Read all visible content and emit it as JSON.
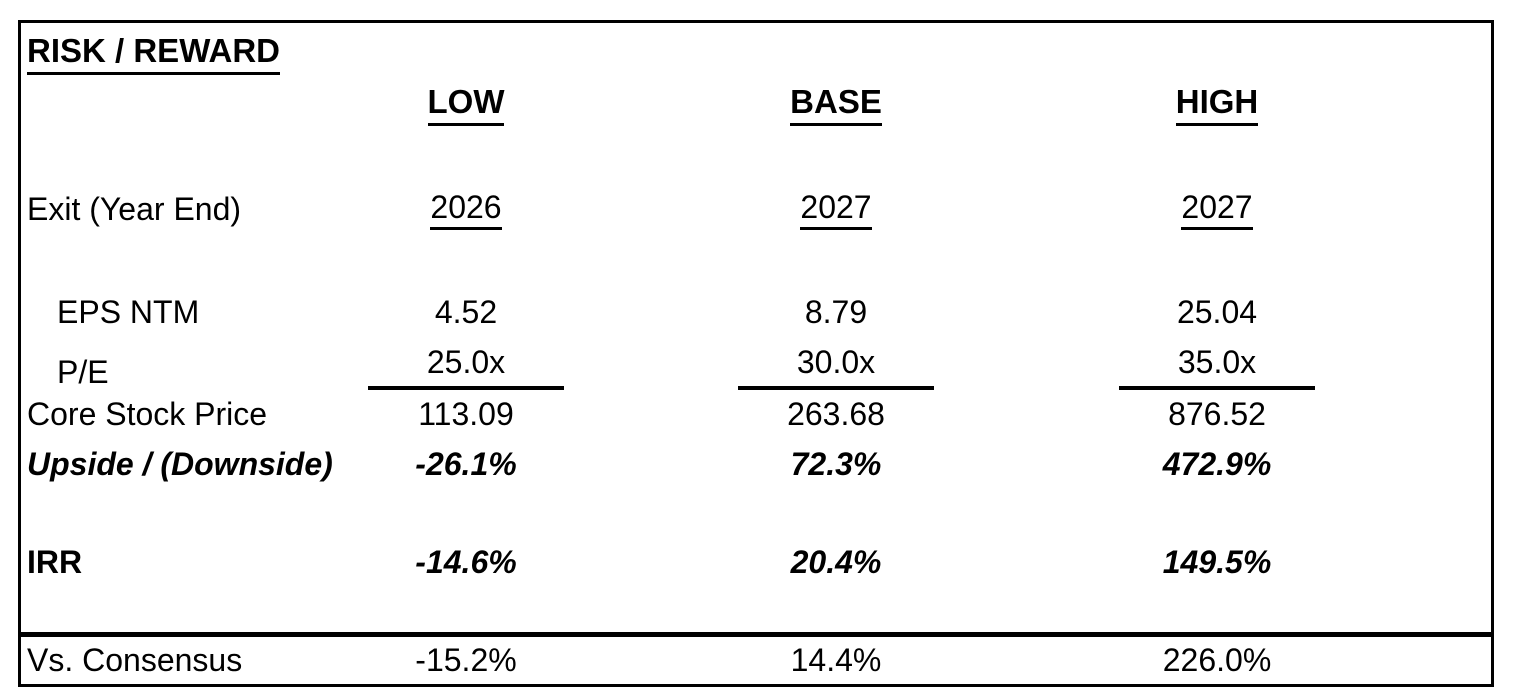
{
  "title": "RISK / REWARD",
  "columns": [
    "LOW",
    "BASE",
    "HIGH"
  ],
  "rows": {
    "exit": {
      "label": "Exit (Year End)",
      "values": [
        "2026",
        "2027",
        "2027"
      ]
    },
    "eps": {
      "label": "EPS NTM",
      "values": [
        "4.52",
        "8.79",
        "25.04"
      ]
    },
    "pe": {
      "label": "P/E",
      "values": [
        "25.0x",
        "30.0x",
        "35.0x"
      ]
    },
    "price": {
      "label": "Core Stock Price",
      "values": [
        "113.09",
        "263.68",
        "876.52"
      ]
    },
    "upside": {
      "label": "Upside / (Downside)",
      "values": [
        "-26.1%",
        "72.3%",
        "472.9%"
      ]
    },
    "irr": {
      "label": "IRR",
      "values": [
        "-14.6%",
        "20.4%",
        "149.5%"
      ]
    },
    "consensus": {
      "label": "Vs. Consensus",
      "values": [
        "-15.2%",
        "14.4%",
        "226.0%"
      ]
    }
  },
  "colors": {
    "border": "#000000",
    "text": "#000000",
    "background": "#ffffff"
  },
  "chart_data": {
    "type": "table",
    "title": "RISK / REWARD",
    "columns": [
      "",
      "LOW",
      "BASE",
      "HIGH"
    ],
    "rows": [
      [
        "Exit (Year End)",
        "2026",
        "2027",
        "2027"
      ],
      [
        "EPS NTM",
        "4.52",
        "8.79",
        "25.04"
      ],
      [
        "P/E",
        "25.0x",
        "30.0x",
        "35.0x"
      ],
      [
        "Core Stock Price",
        "113.09",
        "263.68",
        "876.52"
      ],
      [
        "Upside / (Downside)",
        "-26.1%",
        "72.3%",
        "472.9%"
      ],
      [
        "IRR",
        "-14.6%",
        "20.4%",
        "149.5%"
      ],
      [
        "Vs. Consensus",
        "-15.2%",
        "14.4%",
        "226.0%"
      ]
    ],
    "notes": "Bold-italic emphasis on Upside/(Downside) and IRR rows; sum rule line under P/E row; thick divider above Vs. Consensus row"
  }
}
